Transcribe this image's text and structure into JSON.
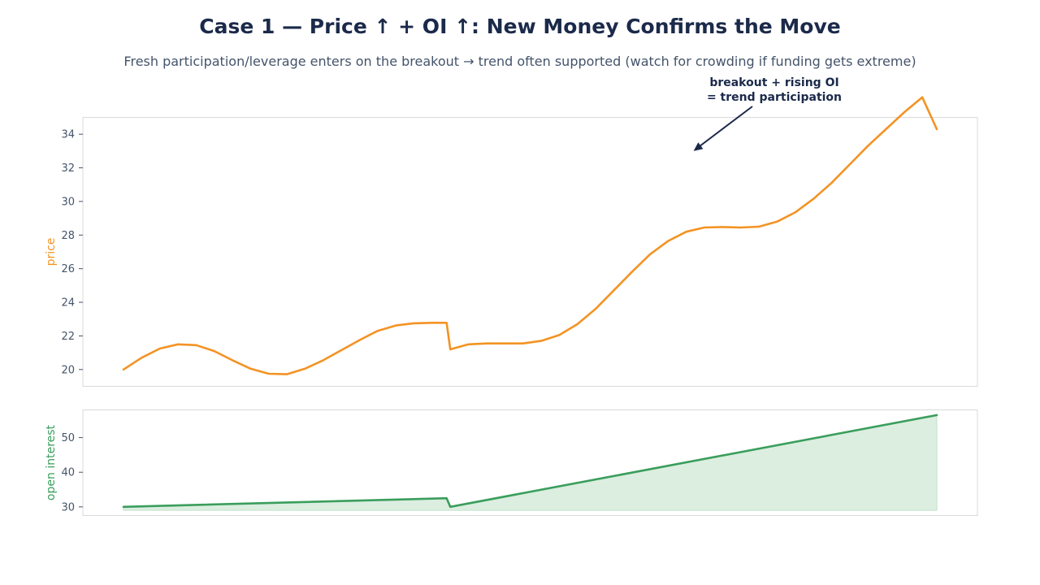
{
  "title": "Case 1 — Price ↑ + OI ↑: New Money Confirms the Move",
  "subtitle": "Fresh participation/leverage enters on the breakout → trend often supported (watch for crowding if funding gets extreme)",
  "colors": {
    "price": "#f39323",
    "oi": "#3a9e5c",
    "oi_fill": "#dbeee0",
    "annotation": "#1b2a4a",
    "axes_border": "#d9d9d9"
  },
  "chart_data": [
    {
      "type": "line",
      "ylabel": "price",
      "ylim": [
        19.0,
        35.0
      ],
      "yticks": [
        20,
        22,
        24,
        26,
        28,
        30,
        32,
        34
      ],
      "grid": false,
      "series": [
        {
          "x": [
            0,
            5,
            10,
            15,
            20,
            25,
            30,
            35,
            40,
            45,
            50,
            55,
            60,
            65,
            70,
            75,
            80,
            85,
            89,
            90,
            95,
            100,
            110,
            115,
            120,
            125,
            130,
            135,
            140,
            145,
            150,
            155,
            160,
            165,
            170,
            175,
            180,
            185,
            190,
            195,
            200,
            205,
            210,
            215,
            220,
            224
          ],
          "values": [
            20.0,
            20.7,
            21.25,
            21.5,
            21.45,
            21.1,
            20.55,
            20.05,
            19.75,
            19.72,
            20.05,
            20.55,
            21.15,
            21.75,
            22.3,
            22.62,
            22.75,
            22.78,
            22.78,
            21.2,
            21.5,
            21.55,
            21.55,
            21.7,
            22.05,
            22.7,
            23.6,
            24.7,
            25.8,
            26.85,
            27.65,
            28.2,
            28.45,
            28.48,
            28.45,
            28.5,
            28.8,
            29.35,
            30.15,
            31.1,
            32.2,
            33.3,
            34.3,
            35.3,
            36.2,
            34.3
          ]
        }
      ],
      "annotation": {
        "text_lines": [
          "breakout + rising OI",
          "= trend participation"
        ],
        "point_x": 157,
        "point_y": 33.0
      }
    },
    {
      "type": "area",
      "ylabel": "open interest",
      "ylim": [
        27.5,
        58.0
      ],
      "yticks": [
        30,
        40,
        50
      ],
      "grid": false,
      "series": [
        {
          "x": [
            0,
            89,
            90,
            224
          ],
          "values": [
            30.0,
            32.5,
            30.0,
            56.5
          ]
        }
      ],
      "fill_baseline": 29.0
    }
  ]
}
